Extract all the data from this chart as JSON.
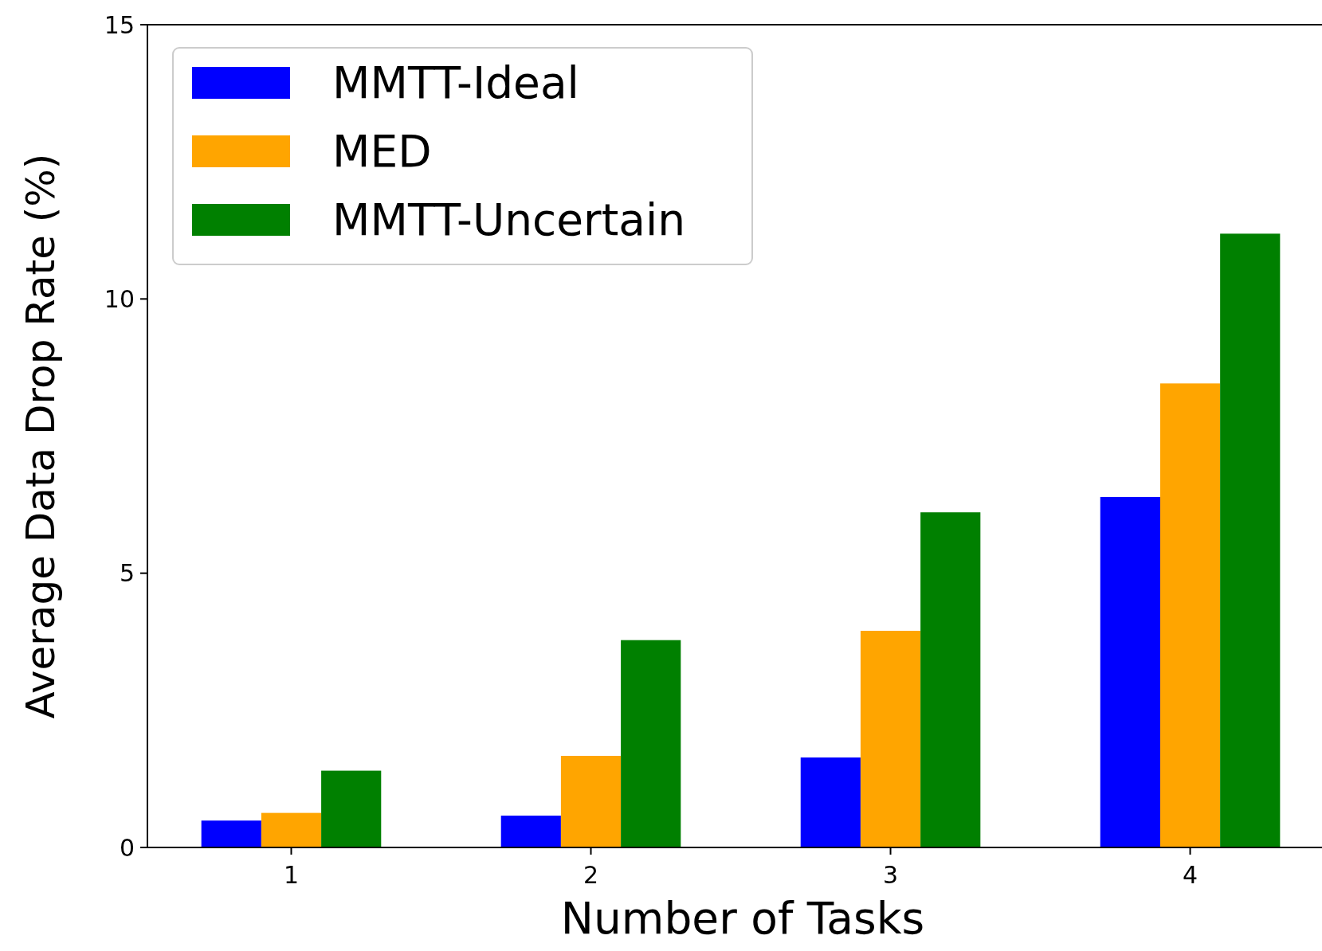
{
  "chart_data": {
    "type": "bar",
    "xlabel": "Number of Tasks",
    "ylabel": "Average Data Drop Rate (%)",
    "categories": [
      "1",
      "2",
      "3",
      "4"
    ],
    "series": [
      {
        "name": "MMTT-Ideal",
        "color": "#0000ff",
        "values": [
          0.49,
          0.58,
          1.64,
          6.39
        ]
      },
      {
        "name": "MED",
        "color": "#ffa500",
        "values": [
          0.63,
          1.67,
          3.95,
          8.46
        ]
      },
      {
        "name": "MMTT-Uncertain",
        "color": "#008000",
        "values": [
          1.4,
          3.78,
          6.11,
          11.19
        ]
      }
    ],
    "ylim": [
      0,
      15
    ],
    "yticks": [
      0,
      5,
      10,
      15
    ],
    "legend": "top left",
    "grid": false
  }
}
